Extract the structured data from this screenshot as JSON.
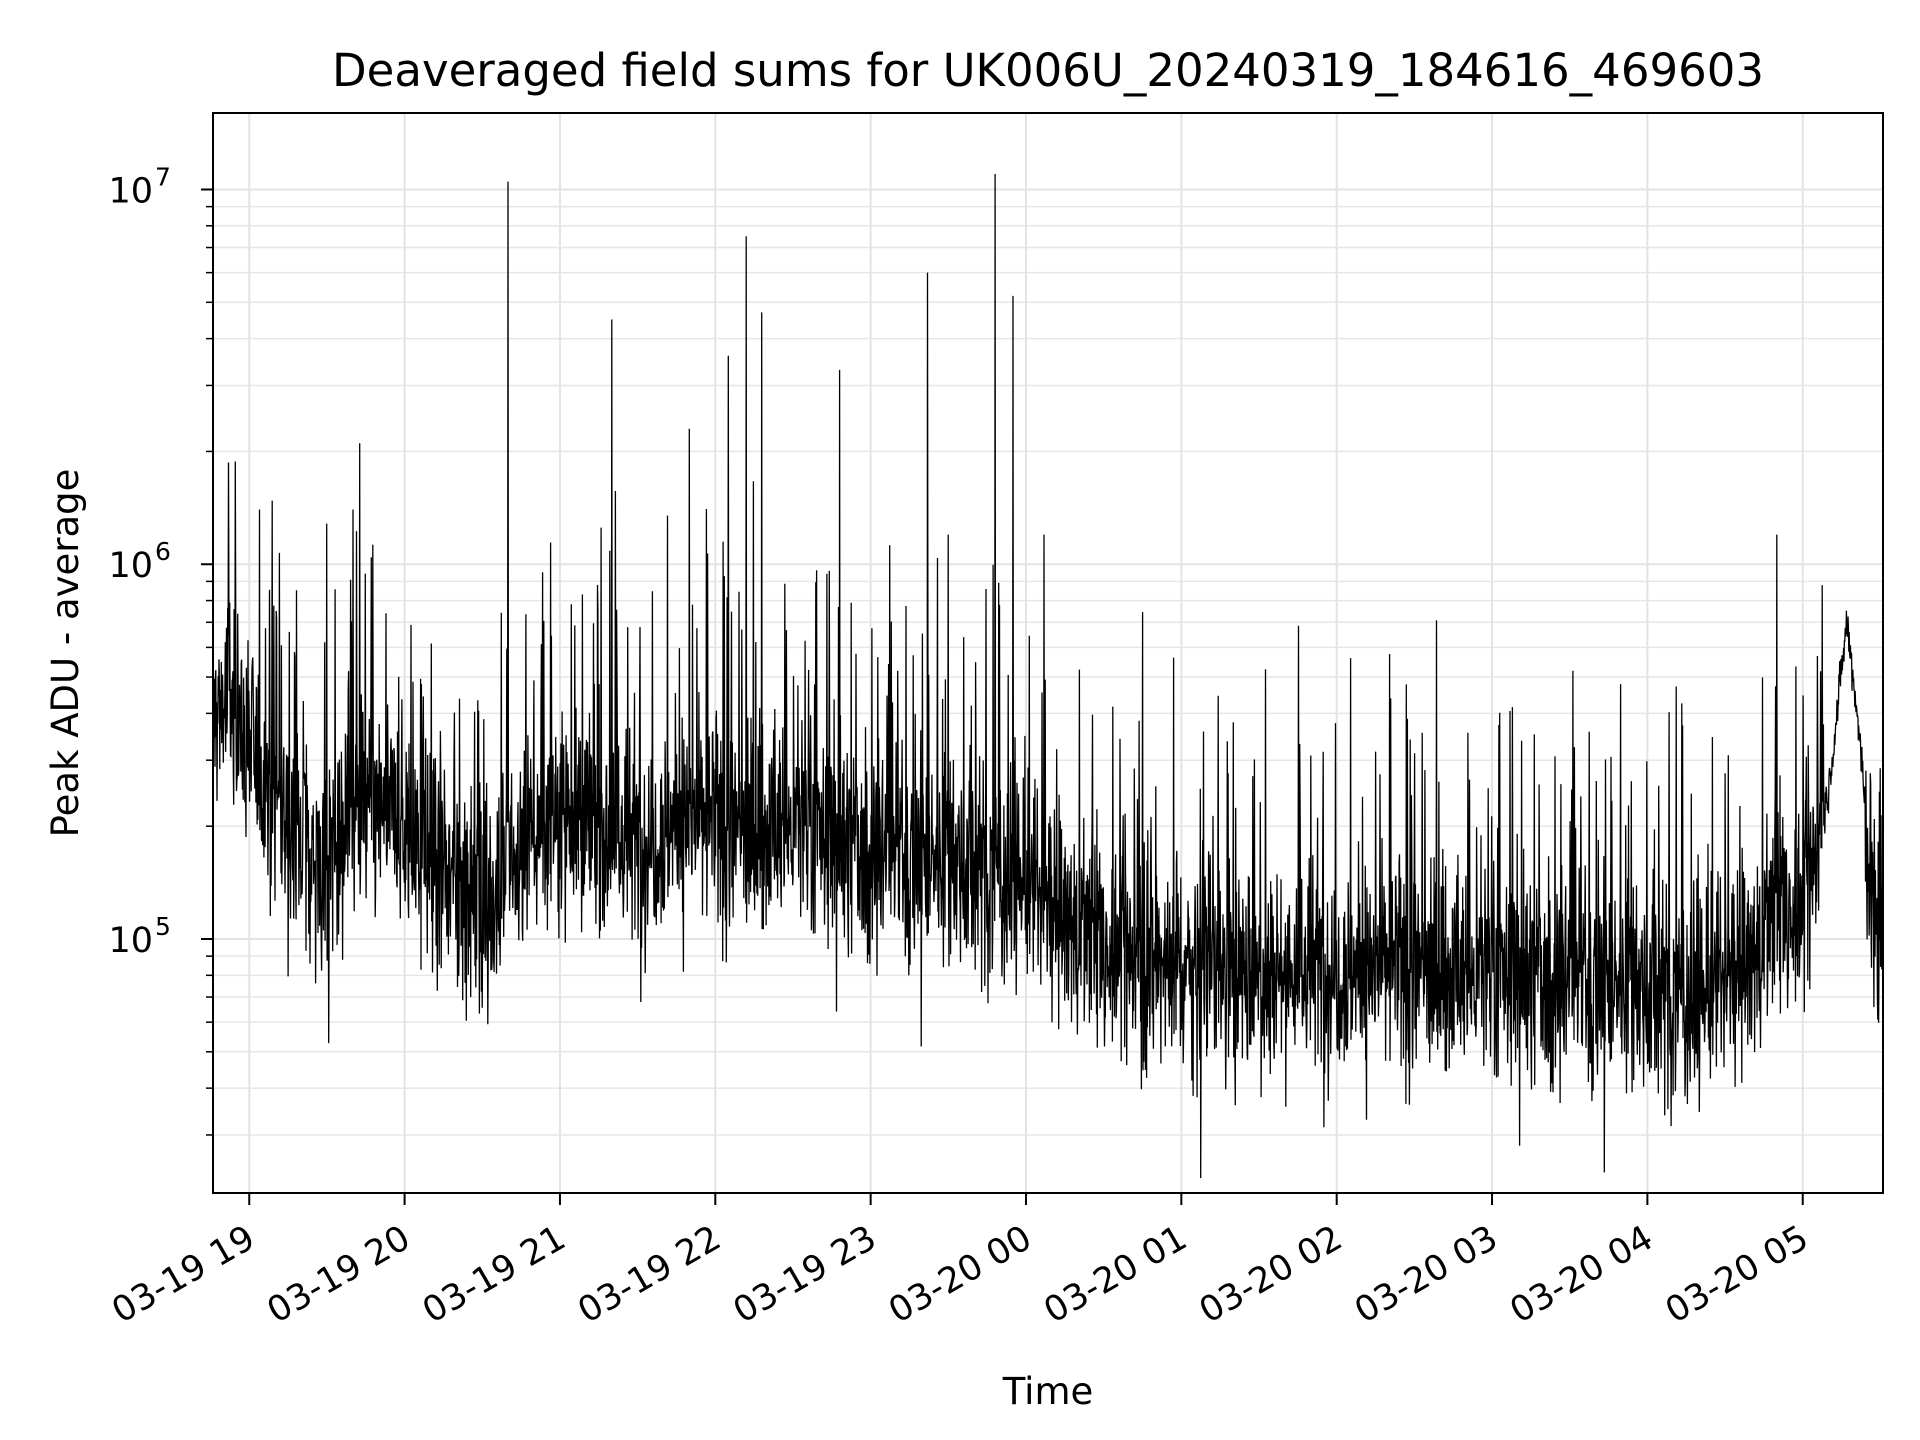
{
  "chart_data": {
    "type": "line",
    "title": "Deaveraged field sums for UK006U_20240319_184616_469603",
    "xlabel": "Time",
    "ylabel": "Peak ADU - average",
    "xlim": [
      "2024-03-19T18:46",
      "2024-03-20T05:31"
    ],
    "ylim": [
      21000,
      16000000
    ],
    "yscale": "log",
    "grid": true,
    "line_color": "#000000",
    "x_ticks": [
      {
        "value": "2024-03-19T19:00",
        "label": "03-19 19"
      },
      {
        "value": "2024-03-19T20:00",
        "label": "03-19 20"
      },
      {
        "value": "2024-03-19T21:00",
        "label": "03-19 21"
      },
      {
        "value": "2024-03-19T22:00",
        "label": "03-19 22"
      },
      {
        "value": "2024-03-19T23:00",
        "label": "03-19 23"
      },
      {
        "value": "2024-03-20T00:00",
        "label": "03-20 00"
      },
      {
        "value": "2024-03-20T01:00",
        "label": "03-20 01"
      },
      {
        "value": "2024-03-20T02:00",
        "label": "03-20 02"
      },
      {
        "value": "2024-03-20T03:00",
        "label": "03-20 03"
      },
      {
        "value": "2024-03-20T04:00",
        "label": "03-20 04"
      },
      {
        "value": "2024-03-20T05:00",
        "label": "03-20 05"
      }
    ],
    "y_ticks": [
      {
        "value": 100000,
        "base": "10",
        "exp": "5"
      },
      {
        "value": 1000000,
        "base": "10",
        "exp": "6"
      },
      {
        "value": 10000000,
        "base": "10",
        "exp": "7"
      }
    ],
    "series": [
      {
        "points": [
          [
            "2024-03-19T18:46",
            380000
          ],
          [
            "2024-03-19T18:52",
            450000
          ],
          [
            "2024-03-19T19:00",
            330000
          ],
          [
            "2024-03-19T19:10",
            240000
          ],
          [
            "2024-03-19T19:20",
            180000
          ],
          [
            "2024-03-19T19:30",
            160000
          ],
          [
            "2024-03-19T19:40",
            230000
          ],
          [
            "2024-03-19T19:50",
            220000
          ],
          [
            "2024-03-19T20:00",
            190000
          ],
          [
            "2024-03-19T20:15",
            150000
          ],
          [
            "2024-03-19T20:30",
            120000
          ],
          [
            "2024-03-19T20:45",
            170000
          ],
          [
            "2024-03-19T21:00",
            230000
          ],
          [
            "2024-03-19T21:15",
            200000
          ],
          [
            "2024-03-19T21:30",
            180000
          ],
          [
            "2024-03-19T21:45",
            210000
          ],
          [
            "2024-03-19T22:00",
            200000
          ],
          [
            "2024-03-19T22:15",
            190000
          ],
          [
            "2024-03-19T22:30",
            200000
          ],
          [
            "2024-03-19T22:45",
            180000
          ],
          [
            "2024-03-19T23:00",
            175000
          ],
          [
            "2024-03-19T23:15",
            170000
          ],
          [
            "2024-03-19T23:30",
            165000
          ],
          [
            "2024-03-19T23:45",
            155000
          ],
          [
            "2024-03-20T00:00",
            140000
          ],
          [
            "2024-03-20T00:15",
            110000
          ],
          [
            "2024-03-20T00:30",
            95000
          ],
          [
            "2024-03-20T00:45",
            90000
          ],
          [
            "2024-03-20T01:00",
            85000
          ],
          [
            "2024-03-20T01:30",
            82000
          ],
          [
            "2024-03-20T02:00",
            85000
          ],
          [
            "2024-03-20T02:30",
            82000
          ],
          [
            "2024-03-20T03:00",
            78000
          ],
          [
            "2024-03-20T03:30",
            80000
          ],
          [
            "2024-03-20T04:00",
            75000
          ],
          [
            "2024-03-20T04:20",
            70000
          ],
          [
            "2024-03-20T04:40",
            85000
          ],
          [
            "2024-03-20T04:50",
            120000
          ],
          [
            "2024-03-20T05:00",
            120000
          ],
          [
            "2024-03-20T05:10",
            250000
          ],
          [
            "2024-03-20T05:17",
            700000
          ],
          [
            "2024-03-20T05:22",
            350000
          ],
          [
            "2024-03-20T05:27",
            120000
          ],
          [
            "2024-03-20T05:31",
            90000
          ]
        ],
        "peaks": [
          [
            "2024-03-19T20:40",
            10500000
          ],
          [
            "2024-03-19T21:20",
            4500000
          ],
          [
            "2024-03-19T22:12",
            7500000
          ],
          [
            "2024-03-19T22:18",
            4700000
          ],
          [
            "2024-03-19T21:50",
            2300000
          ],
          [
            "2024-03-19T22:48",
            3300000
          ],
          [
            "2024-03-19T23:22",
            6000000
          ],
          [
            "2024-03-19T23:48",
            11000000
          ],
          [
            "2024-03-19T23:55",
            5200000
          ],
          [
            "2024-03-19T23:30",
            1200000
          ],
          [
            "2024-03-20T00:07",
            1200000
          ],
          [
            "2024-03-19T19:04",
            1400000
          ],
          [
            "2024-03-19T19:40",
            1400000
          ],
          [
            "2024-03-19T22:05",
            3600000
          ],
          [
            "2024-03-20T04:50",
            1200000
          ]
        ]
      }
    ]
  }
}
